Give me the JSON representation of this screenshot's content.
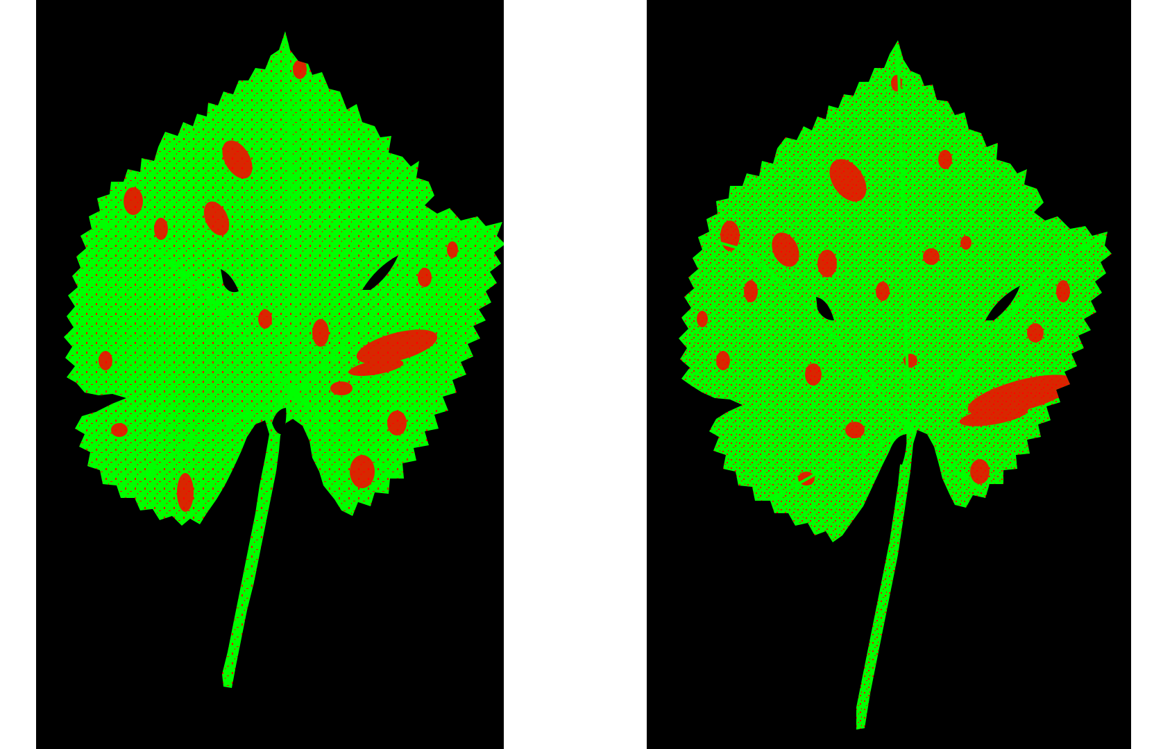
{
  "image": {
    "panels": [
      {
        "id": "left",
        "subject": "grape-leaf-segmentation",
        "colors": {
          "background": "#000000",
          "healthy": "#00ff00",
          "diseased": "#ff0000"
        }
      },
      {
        "id": "right",
        "subject": "grape-leaf-segmentation",
        "colors": {
          "background": "#000000",
          "healthy": "#00ff00",
          "diseased": "#ff0000"
        }
      }
    ],
    "page_background": "#ffffff"
  }
}
